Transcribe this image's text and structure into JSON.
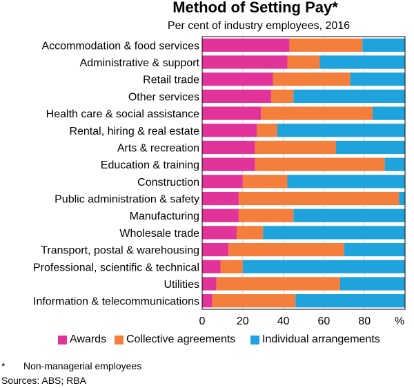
{
  "chart_data": {
    "type": "bar",
    "orientation": "horizontal",
    "stacked": true,
    "title": "Method of Setting Pay*",
    "subtitle": "Per cent of industry employees, 2016",
    "unit_label": "%",
    "xlim": [
      0,
      100
    ],
    "x_ticks": [
      "0",
      "20",
      "40",
      "60",
      "80"
    ],
    "grid": true,
    "legend_position": "bottom",
    "categories": [
      "Accommodation & food services",
      "Administrative & support",
      "Retail trade",
      "Other services",
      "Health care & social assistance",
      "Rental, hiring & real estate",
      "Arts & recreation",
      "Education & training",
      "Construction",
      "Public administration & safety",
      "Manufacturing",
      "Wholesale trade",
      "Transport, postal & warehousing",
      "Professional, scientific & technical",
      "Utilities",
      "Information & telecommunications"
    ],
    "series": [
      {
        "name": "Awards",
        "color": "#e2339b",
        "values": [
          43,
          42,
          35,
          34,
          29,
          27,
          26,
          26,
          20,
          18,
          18,
          17,
          13,
          9,
          7,
          5
        ]
      },
      {
        "name": "Collective agreements",
        "color": "#f47e3c",
        "values": [
          36,
          16,
          38,
          11,
          55,
          10,
          40,
          64,
          22,
          79,
          27,
          13,
          57,
          11,
          61,
          41
        ]
      },
      {
        "name": "Individual arrangements",
        "color": "#1fa3dd",
        "values": [
          21,
          42,
          27,
          55,
          16,
          63,
          34,
          10,
          58,
          3,
          55,
          70,
          30,
          80,
          32,
          54
        ]
      }
    ]
  },
  "footnote": {
    "marker": "*",
    "text": "Non-managerial employees"
  },
  "sources": "Sources: ABS; RBA"
}
